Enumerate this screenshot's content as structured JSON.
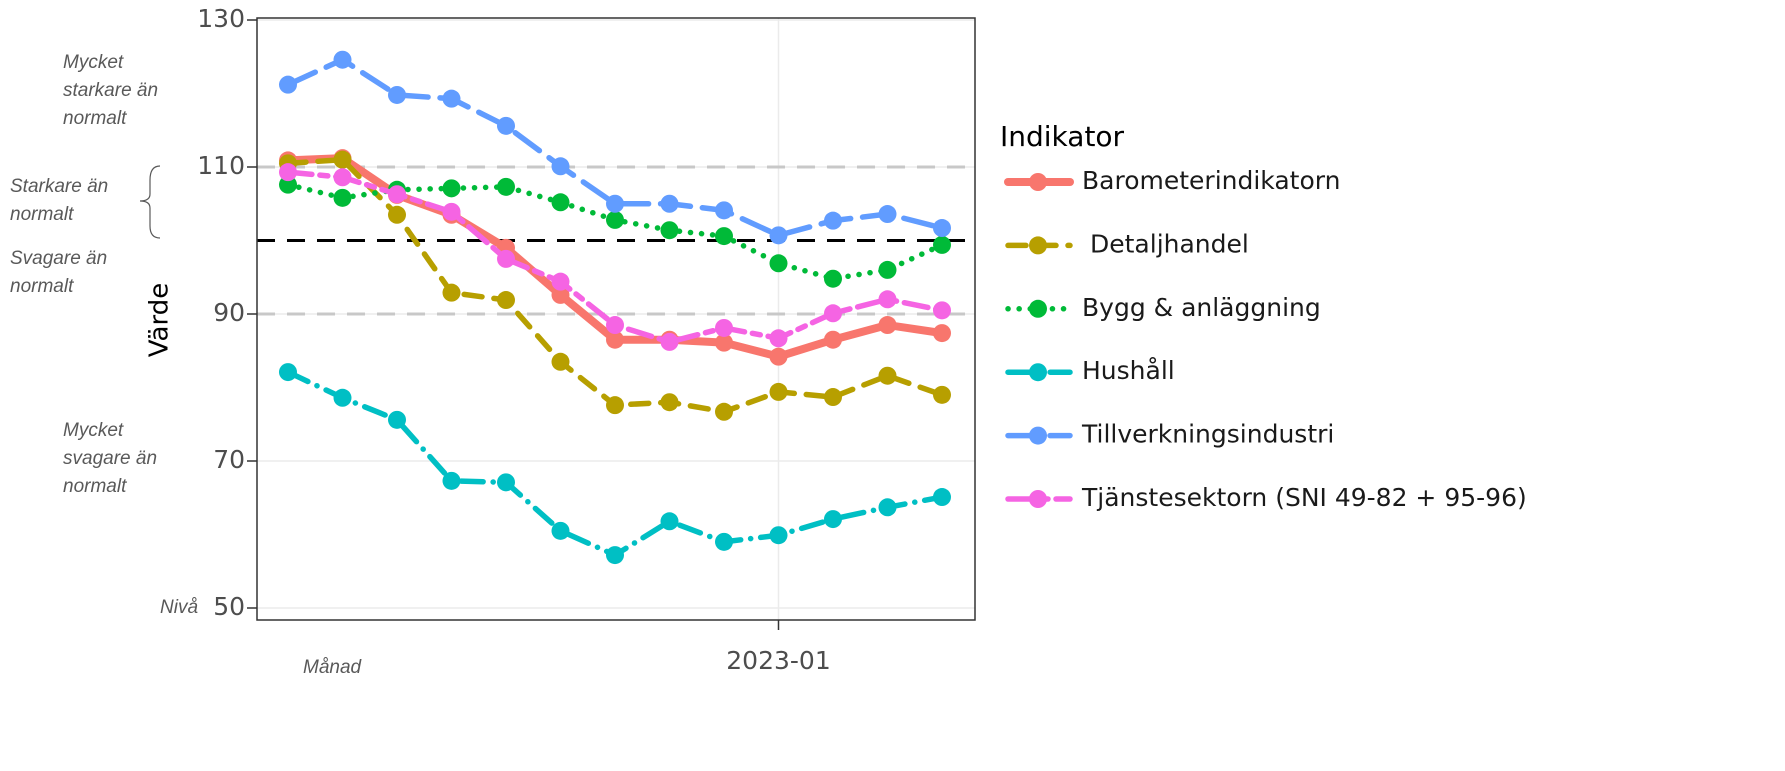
{
  "chart_data": {
    "type": "line",
    "y_label": "Värde",
    "legend_title": "Indikator",
    "legend_position": "right",
    "grid": true,
    "x": [
      "2022-04",
      "2022-05",
      "2022-06",
      "2022-07",
      "2022-08",
      "2022-09",
      "2022-10",
      "2022-11",
      "2022-12",
      "2023-01",
      "2023-02",
      "2023-03",
      "2023-04"
    ],
    "xlim": [
      "2022-04",
      "2023-04"
    ],
    "xticks": [
      "2023-01"
    ],
    "ylim": [
      50,
      130
    ],
    "yticks": [
      50,
      70,
      90,
      110,
      130
    ],
    "hlines": [
      {
        "value": 110,
        "color": "#c8c8c8",
        "style": "dashed"
      },
      {
        "value": 90,
        "color": "#c8c8c8",
        "style": "dashed"
      },
      {
        "value": 100,
        "color": "#000000",
        "style": "dashed"
      }
    ],
    "series": [
      {
        "name": "Barometerindikatorn",
        "color": "#F8766D",
        "style": "solid",
        "values": [
          110.9,
          111.2,
          106.2,
          103.5,
          99.0,
          92.6,
          86.5,
          86.5,
          86.1,
          84.2,
          86.5,
          88.5,
          87.4
        ]
      },
      {
        "name": "Detaljhandel",
        "color": "#B79F00",
        "style": "dashed",
        "values": [
          110.5,
          111.0,
          103.5,
          92.9,
          91.9,
          83.5,
          77.6,
          78.0,
          76.7,
          79.4,
          78.7,
          81.6,
          79.0
        ]
      },
      {
        "name": "Bygg & anläggning",
        "color": "#00BA38",
        "style": "dotted",
        "values": [
          107.6,
          105.8,
          106.9,
          107.1,
          107.3,
          105.2,
          102.8,
          101.4,
          100.6,
          96.9,
          94.8,
          96.0,
          99.4
        ]
      },
      {
        "name": "Hushåll",
        "color": "#00BFC4",
        "style": "dotdash",
        "values": [
          82.1,
          78.6,
          75.6,
          67.3,
          67.1,
          60.5,
          57.2,
          61.8,
          59.0,
          59.9,
          62.1,
          63.7,
          65.1
        ]
      },
      {
        "name": "Tillverkningsindustri",
        "color": "#619CFF",
        "style": "longdash",
        "values": [
          121.2,
          124.6,
          119.8,
          119.3,
          115.6,
          110.1,
          105.0,
          105.0,
          104.1,
          100.7,
          102.7,
          103.6,
          101.7
        ]
      },
      {
        "name": "Tjänstesektorn (SNI 49-82 + 95-96)",
        "color": "#F564E3",
        "style": "twodash",
        "values": [
          109.3,
          108.6,
          106.3,
          103.9,
          97.5,
          94.4,
          88.5,
          86.2,
          88.1,
          86.7,
          90.1,
          92.0,
          90.5
        ]
      }
    ],
    "annotations": [
      {
        "lines": [
          "Mycket",
          "starkare än",
          "normalt"
        ]
      },
      {
        "lines": [
          "Starkare än",
          "normalt"
        ]
      },
      {
        "lines": [
          "Svagare än",
          "normalt"
        ]
      },
      {
        "lines": [
          "Mycket",
          "svagare än",
          "normalt"
        ]
      },
      {
        "lines": [
          "Nivå"
        ]
      },
      {
        "lines": [
          "Månad"
        ]
      }
    ]
  }
}
